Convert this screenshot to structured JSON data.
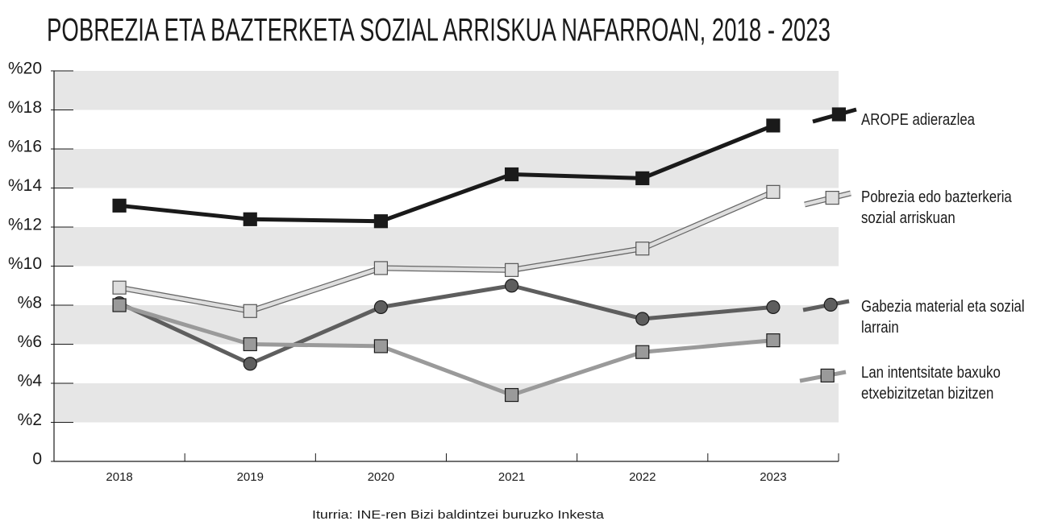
{
  "chart_data": {
    "type": "line",
    "title": "POBREZIA ETA BAZTERKETA SOZIAL ARRISKUA NAFARROAN, 2018 - 2023",
    "source": "Iturria: INE-ren Bizi baldintzei buruzko Inkesta",
    "categories": [
      "2018",
      "2019",
      "2020",
      "2021",
      "2022",
      "2023"
    ],
    "series": [
      {
        "name": "AROPE adierazlea",
        "color": "#1a1a1a",
        "marker": "square",
        "values": [
          13.1,
          12.4,
          12.3,
          14.7,
          14.5,
          17.2
        ]
      },
      {
        "name": "Pobrezia edo bazterkeria sozial arriskuan",
        "color": "#dedede",
        "marker": "square",
        "values": [
          8.9,
          7.7,
          9.9,
          9.8,
          10.9,
          13.8
        ]
      },
      {
        "name": "Gabezia material eta sozial larrain",
        "color": "#5e5e5e",
        "marker": "circle",
        "values": [
          8.1,
          5.0,
          7.9,
          9.0,
          7.3,
          7.9
        ]
      },
      {
        "name": "Lan intentsitate baxuko etxebizitzetan bizitzen",
        "color": "#9a9a9a",
        "marker": "square",
        "values": [
          8.0,
          6.0,
          5.9,
          3.4,
          5.6,
          6.2
        ]
      }
    ],
    "ylim": [
      0,
      20
    ],
    "yticks": [
      0,
      {
        "value": 2,
        "label": "%2"
      },
      {
        "value": 4,
        "label": "%4"
      },
      {
        "value": 6,
        "label": "%6"
      },
      {
        "value": 8,
        "label": "%8"
      },
      {
        "value": 10,
        "label": "%10"
      },
      {
        "value": 12,
        "label": "%12"
      },
      {
        "value": 14,
        "label": "%14"
      },
      {
        "value": 16,
        "label": "%16"
      },
      {
        "value": 18,
        "label": "%18"
      },
      {
        "value": 20,
        "label": "%20"
      }
    ],
    "grid": true
  }
}
